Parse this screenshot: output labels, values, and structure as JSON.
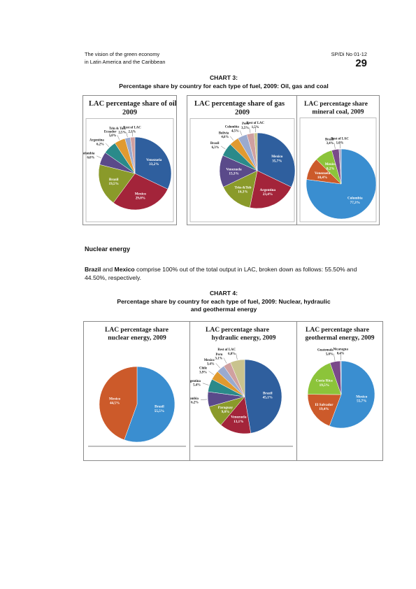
{
  "header": {
    "left_line1": "The vision of the green economy",
    "left_line2": "in Latin America and the Caribbean",
    "right_code": "SP/Di No 01-12",
    "page_number": "29"
  },
  "chart3": {
    "label": "CHART 3:",
    "caption": "Percentage share by country for each type of fuel, 2009: Oil, gas and coal"
  },
  "chart4": {
    "label": "CHART 4:",
    "caption_line1": "Percentage share by country for each type of fuel, 2009: Nuclear, hydraulic",
    "caption_line2": "and geothermal energy"
  },
  "nuclear_section": {
    "title": "Nuclear energy",
    "country1": "Brazil",
    "connector1": " and ",
    "country2": "Mexico",
    "text_rest": " comprise 100% out of the total output in LAC, broken down as follows: 55.50% and 44.50%, respectively."
  },
  "chart_data": [
    {
      "type": "pie",
      "title_line1": "LAC percentage share of oil",
      "title_line2": "2009",
      "slices": [
        {
          "name": "Venezuela",
          "label": "Venezuela",
          "pct_label": "33,2%",
          "value": 33.2,
          "color": "#2f5f9e"
        },
        {
          "name": "Mexico",
          "label": "Mexico",
          "pct_label": "29,0%",
          "value": 29.0,
          "color": "#a3243a"
        },
        {
          "name": "Brazil",
          "label": "Brazil",
          "pct_label": "19,5%",
          "value": 19.5,
          "color": "#8a9a2a"
        },
        {
          "name": "Colombia",
          "label": "Colombia",
          "pct_label": "6,0%",
          "value": 6.0,
          "color": "#5a4a8a"
        },
        {
          "name": "Argentina",
          "label": "Argentina",
          "pct_label": "6,2%",
          "value": 6.2,
          "color": "#2a8a8a"
        },
        {
          "name": "Ecuador",
          "label": "Ecuador",
          "pct_label": "5,0%",
          "value": 5.0,
          "color": "#e09a30"
        },
        {
          "name": "Trin & Tob",
          "label": "Trin & Tob.",
          "pct_label": "2,5%",
          "value": 2.5,
          "color": "#9aaacf"
        },
        {
          "name": "Rest of LAC",
          "label": "Rest of LAC",
          "pct_label": "2,1%",
          "value": 2.1,
          "color": "#d0a0a0"
        }
      ]
    },
    {
      "type": "pie",
      "title_line1": "LAC percentage share of gas",
      "title_line2": "2009",
      "slices": [
        {
          "name": "Mexico",
          "label": "Mexico",
          "pct_label": "35,7%",
          "value": 35.7,
          "color": "#2f5f9e"
        },
        {
          "name": "Argentina",
          "label": "Argentina",
          "pct_label": "23,4%",
          "value": 23.4,
          "color": "#a3243a"
        },
        {
          "name": "Trin-&Tob",
          "label": "Trin-&Tob",
          "pct_label": "16,3%",
          "value": 16.3,
          "color": "#8a9a2a"
        },
        {
          "name": "Venezuela",
          "label": "Venezuela",
          "pct_label": "15,3%",
          "value": 15.3,
          "color": "#5a4a8a"
        },
        {
          "name": "Brazil",
          "label": "Brazil",
          "pct_label": "6,3%",
          "value": 6.3,
          "color": "#2a8a8a"
        },
        {
          "name": "Bolivia",
          "label": "Bolivia",
          "pct_label": "4,6%",
          "value": 4.6,
          "color": "#e09a30"
        },
        {
          "name": "Colombia",
          "label": "Colombia",
          "pct_label": "4,5%",
          "value": 4.5,
          "color": "#9aaacf"
        },
        {
          "name": "Peru",
          "label": "Peru",
          "pct_label": "3,5%",
          "value": 3.5,
          "color": "#d0a0a0"
        },
        {
          "name": "Rest of LAC",
          "label": "Rest of LAC",
          "pct_label": "1,5%",
          "value": 1.5,
          "color": "#c9c38e"
        }
      ]
    },
    {
      "type": "pie",
      "title_line1": "LAC percentage share",
      "title_line2": "mineral coal, 2009",
      "slices": [
        {
          "name": "Colombia",
          "label": "Colombia",
          "pct_label": "77,3%",
          "value": 77.3,
          "color": "#3a8ed0"
        },
        {
          "name": "Venezuela",
          "label": "Venezuela",
          "pct_label": "10,4%",
          "value": 10.4,
          "color": "#cc5a2a"
        },
        {
          "name": "Mexico",
          "label": "Mexico",
          "pct_label": "8,2%",
          "value": 8.2,
          "color": "#8cc43a"
        },
        {
          "name": "Brazil",
          "label": "Brazil",
          "pct_label": "3,4%",
          "value": 3.4,
          "color": "#7a4a8a"
        },
        {
          "name": "Rest of LAC",
          "label": "Rest of LAC",
          "pct_label": "1,0%",
          "value": 1.0,
          "color": "#a8a8c8"
        }
      ]
    },
    {
      "type": "pie",
      "title_line1": "LAC percentage share",
      "title_line2": "nuclear energy, 2009",
      "slices": [
        {
          "name": "Brazil",
          "label": "Brazil",
          "pct_label": "55,5%",
          "value": 55.5,
          "color": "#3a8ed0"
        },
        {
          "name": "Mexico",
          "label": "Mexico",
          "pct_label": "44,5%",
          "value": 44.5,
          "color": "#cc5a2a"
        }
      ]
    },
    {
      "type": "pie",
      "title_line1": "LAC percentage share",
      "title_line2": "hydraulic energy, 2009",
      "slices": [
        {
          "name": "Brazil",
          "label": "Brazil",
          "pct_label": "45,1%",
          "value": 45.1,
          "color": "#2f5f9e"
        },
        {
          "name": "Venezuela",
          "label": "Venezuela",
          "pct_label": "13,1%",
          "value": 13.1,
          "color": "#a3243a"
        },
        {
          "name": "Paraguay",
          "label": "Paraguay",
          "pct_label": "9,0%",
          "value": 9.0,
          "color": "#8a9a2a"
        },
        {
          "name": "Colombia",
          "label": "Colombia",
          "pct_label": "6,2%",
          "value": 6.2,
          "color": "#5a4a8a"
        },
        {
          "name": "Argentina",
          "label": "Argentina",
          "pct_label": "5,4%",
          "value": 5.4,
          "color": "#2a8a8a"
        },
        {
          "name": "Chile",
          "label": "Chile",
          "pct_label": "3,9%",
          "value": 3.9,
          "color": "#e09a30"
        },
        {
          "name": "Mexico",
          "label": "Mexico",
          "pct_label": "3,4%",
          "value": 3.4,
          "color": "#9aaacf"
        },
        {
          "name": "Peru",
          "label": "Peru",
          "pct_label": "3,1%",
          "value": 3.1,
          "color": "#d0a0a0"
        },
        {
          "name": "Rest of LAC",
          "label": "Rest of LAC",
          "pct_label": "6,0%",
          "value": 6.0,
          "color": "#c9c38e"
        }
      ]
    },
    {
      "type": "pie",
      "title_line1": "LAC percentage share",
      "title_line2": "geothermal energy, 2009",
      "slices": [
        {
          "name": "Mexico",
          "label": "Mexico",
          "pct_label": "55,7%",
          "value": 55.7,
          "color": "#3a8ed0"
        },
        {
          "name": "El Salvador",
          "label": "El Salvador",
          "pct_label": "19,4%",
          "value": 19.4,
          "color": "#cc5a2a"
        },
        {
          "name": "Costa Rica",
          "label": "Costa Rica",
          "pct_label": "19,5%",
          "value": 19.5,
          "color": "#8cc43a"
        },
        {
          "name": "Guatemala",
          "label": "Guatemala",
          "pct_label": "5,0%",
          "value": 5.0,
          "color": "#7a4a8a"
        },
        {
          "name": "Nicaragua",
          "label": "Nicaragua",
          "pct_label": "0,4%",
          "value": 0.4,
          "color": "#a8a8c8"
        }
      ]
    }
  ]
}
